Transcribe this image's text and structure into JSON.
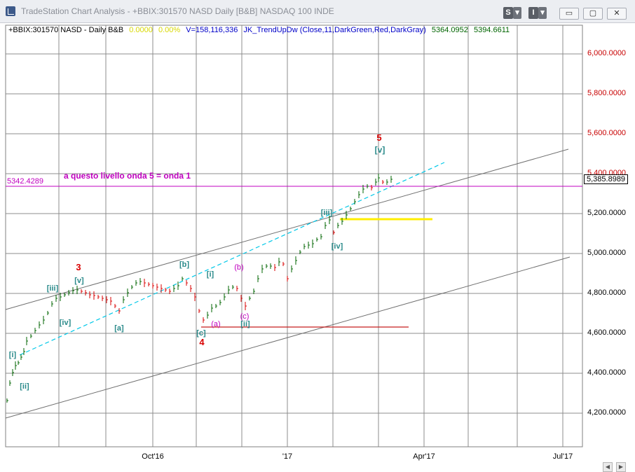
{
  "window": {
    "title": "TradeStation Chart Analysis - +BBIX:301570 NASD Daily [B&B] NASDAQ 100 INDE",
    "s_button": "S",
    "s_arrow": "▾",
    "i_button": "I",
    "i_arrow": "▾",
    "minimize": "▭",
    "maximize": "▢",
    "close": "✕"
  },
  "status_line": {
    "symbol": "+BBIX:301570 NASD - Daily  B&B",
    "change": "0.0000",
    "change_pct": "0.00%",
    "volume": "V=158,116,336",
    "indicator": "JK_TrendUpDw  (Close,11,DarkGreen,Red,DarkGray)",
    "ind_val1": "5364.0952",
    "ind_val2": "5394.6611"
  },
  "colors": {
    "up_bar": "#006400",
    "wave_teal": "#2a8a8a",
    "wave_red": "#d80000",
    "wave_magenta": "#c000c0",
    "support_yellow": "#ffee00",
    "trend_cyan": "#00c8e8",
    "channel_gray": "#707070",
    "grid": "#808080"
  },
  "y_axis": {
    "ticks": [
      "6,000.0000",
      "5,800.0000",
      "5,600.0000",
      "5,400.0000",
      "5,200.0000",
      "5,000.0000",
      "4,800.0000",
      "4,600.0000",
      "4,400.0000",
      "4,200.0000"
    ]
  },
  "x_axis": {
    "ticks": [
      "Oct'16",
      "'17",
      "Apr'17",
      "Jul'17"
    ]
  },
  "price_level": {
    "left_label": "5342.4289",
    "right_label": "5,385.8989",
    "annotation": "a questo livello onda 5 = onda 1"
  },
  "wave_labels": {
    "i": "[i]",
    "ii": "[ii]",
    "iii": "[iii]",
    "iv": "[iv]",
    "v": "[v]",
    "w3": "3",
    "a": "[a]",
    "b": "[b]",
    "c": "[c]",
    "w4": "4",
    "a_small": "(a)",
    "b_small": "(b)",
    "c_small": "(c)",
    "i2": "[i]",
    "ii2": "[ii]",
    "iii2": "[iii]",
    "iv2": "[iv]",
    "v2": "[v]",
    "w5": "5"
  },
  "scroll": {
    "left": "◀",
    "right": "▶"
  }
}
